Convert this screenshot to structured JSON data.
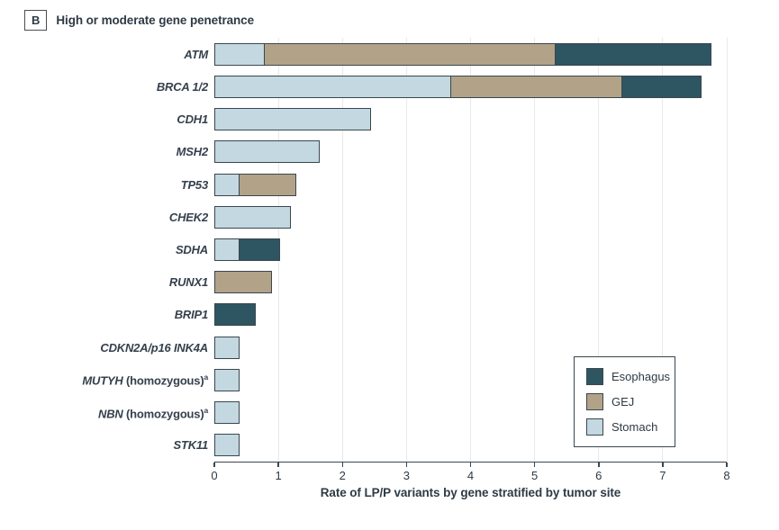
{
  "header": {
    "panel_label": "B",
    "title": "High or moderate gene penetrance"
  },
  "chart_data": {
    "type": "bar",
    "orientation": "horizontal",
    "stacked": true,
    "title": "High or moderate gene penetrance",
    "xlabel": "Rate of LP/P variants by gene stratified by tumor site",
    "xlim": [
      0,
      8
    ],
    "xticks": [
      0,
      1,
      2,
      3,
      4,
      5,
      6,
      7,
      8
    ],
    "grid": "vertical-light",
    "legend_position": "lower-right",
    "legend": [
      "Esophagus",
      "GEJ",
      "Stomach"
    ],
    "series_colors": {
      "Esophagus": "#2e5562",
      "GEJ": "#b1a288",
      "Stomach": "#c3d8e0"
    },
    "rows": [
      {
        "gene": "ATM",
        "suffix": "",
        "sup": "",
        "segments": [
          [
            "Stomach",
            0.8
          ],
          [
            "GEJ",
            4.55
          ],
          [
            "Esophagus",
            2.45
          ]
        ]
      },
      {
        "gene": "BRCA 1/2",
        "suffix": "",
        "sup": "",
        "segments": [
          [
            "Stomach",
            3.7
          ],
          [
            "GEJ",
            2.7
          ],
          [
            "Esophagus",
            1.25
          ]
        ]
      },
      {
        "gene": "CDH1",
        "suffix": "",
        "sup": "",
        "segments": [
          [
            "Stomach",
            2.45
          ]
        ]
      },
      {
        "gene": "MSH2",
        "suffix": "",
        "sup": "",
        "segments": [
          [
            "Stomach",
            1.65
          ]
        ]
      },
      {
        "gene": "TP53",
        "suffix": "",
        "sup": "",
        "segments": [
          [
            "Stomach",
            0.4
          ],
          [
            "GEJ",
            0.9
          ]
        ]
      },
      {
        "gene": "CHEK2",
        "suffix": "",
        "sup": "",
        "segments": [
          [
            "Stomach",
            1.2
          ]
        ]
      },
      {
        "gene": "SDHA",
        "suffix": "",
        "sup": "",
        "segments": [
          [
            "Stomach",
            0.4
          ],
          [
            "Esophagus",
            0.65
          ]
        ]
      },
      {
        "gene": "RUNX1",
        "suffix": "",
        "sup": "",
        "segments": [
          [
            "GEJ",
            0.9
          ]
        ]
      },
      {
        "gene": "BRIP1",
        "suffix": "",
        "sup": "",
        "segments": [
          [
            "Esophagus",
            0.65
          ]
        ]
      },
      {
        "gene": "CDKN2A/p16 INK4A",
        "suffix": "",
        "sup": "",
        "segments": [
          [
            "Stomach",
            0.4
          ]
        ]
      },
      {
        "gene": "MUTYH",
        "suffix": " (homozygous)",
        "sup": "a",
        "segments": [
          [
            "Stomach",
            0.4
          ]
        ]
      },
      {
        "gene": "NBN",
        "suffix": " (homozygous)",
        "sup": "a",
        "segments": [
          [
            "Stomach",
            0.4
          ]
        ]
      },
      {
        "gene": "STK11",
        "suffix": "",
        "sup": "",
        "segments": [
          [
            "Stomach",
            0.4
          ]
        ]
      }
    ]
  },
  "style": {
    "bar_border": "#3b464e",
    "text_color": "#2e3a45",
    "gridline_color": "#e9e9e9",
    "background": "#ffffff"
  }
}
